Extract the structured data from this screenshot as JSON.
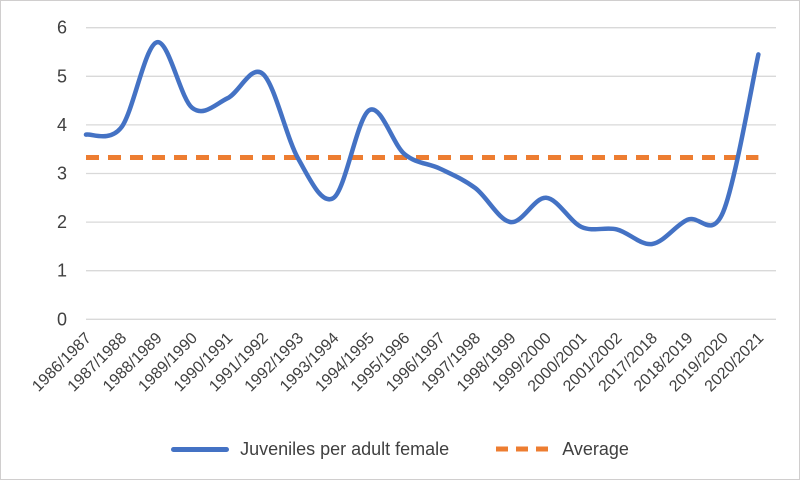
{
  "chart_data": {
    "type": "line",
    "title": "",
    "xlabel": "",
    "ylabel": "",
    "categories": [
      "1986/1987",
      "1987/1988",
      "1988/1989",
      "1989/1990",
      "1990/1991",
      "1991/1992",
      "1992/1993",
      "1993/1994",
      "1994/1995",
      "1995/1996",
      "1996/1997",
      "1997/1998",
      "1998/1999",
      "1999/2000",
      "2000/2001",
      "2001/2002",
      "2017/2018",
      "2018/2019",
      "2019/2020",
      "2020/2021"
    ],
    "series": [
      {
        "name": "Juveniles per adult female",
        "style": "solid",
        "smooth": true,
        "color": "#4472C4",
        "values": [
          3.8,
          3.95,
          5.7,
          4.35,
          4.55,
          5.05,
          3.3,
          2.5,
          4.3,
          3.4,
          3.1,
          2.7,
          2.0,
          2.5,
          1.9,
          1.85,
          1.55,
          2.05,
          2.2,
          5.45
        ]
      },
      {
        "name": "Average",
        "style": "dashed",
        "color": "#ED7D31",
        "value": 3.33
      }
    ],
    "ylim": [
      0,
      6
    ],
    "yticks": [
      0,
      1,
      2,
      3,
      4,
      5,
      6
    ],
    "grid": true,
    "legend_position": "bottom",
    "colors": {
      "series_line": "#4472C4",
      "average_line": "#ED7D31",
      "gridline": "#D9D9D9",
      "axis_text": "#404040",
      "frame_border": "#D0CECE",
      "background": "#FFFFFF"
    }
  }
}
